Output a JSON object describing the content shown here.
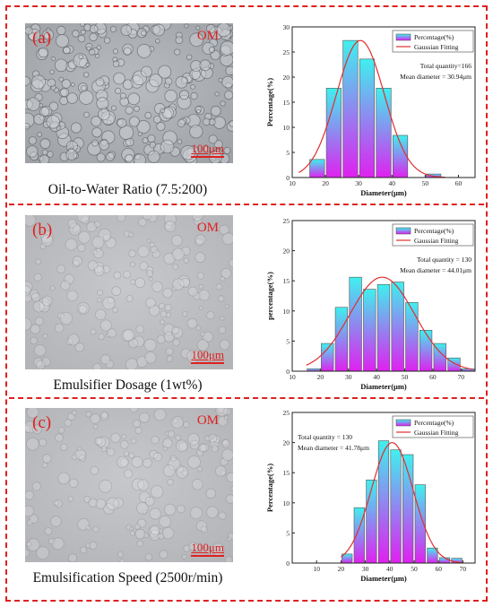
{
  "colors": {
    "frame": "#e02020",
    "fit": "#e03030",
    "bar_top": "#3ff0ef",
    "bar_bottom": "#e020f0"
  },
  "panels": [
    {
      "label": "(a)",
      "om": "OM",
      "scale": "100μm",
      "caption": "Oil-to-Water Ratio (7.5:200)",
      "texture": "dense",
      "chart_data": {
        "type": "bar",
        "xlabel": "Diameter(μm)",
        "ylabel": "Percentage(%)",
        "xlim": [
          10,
          65
        ],
        "ylim": [
          0,
          30
        ],
        "xticks": [
          10,
          20,
          30,
          40,
          50,
          60
        ],
        "yticks": [
          0,
          5,
          10,
          15,
          20,
          25,
          30
        ],
        "x": [
          17.5,
          22.5,
          27.5,
          32.5,
          37.5,
          42.5,
          52.5
        ],
        "values": [
          3.6,
          17.8,
          27.3,
          23.6,
          17.8,
          8.4,
          0.7
        ],
        "bin_width": 5,
        "fit": {
          "mean": 30.5,
          "sd": 7.2,
          "peak": 27.3,
          "range": [
            12,
            56
          ]
        },
        "legend": [
          "Percentage(%)",
          "Gaussian Fitting"
        ],
        "annotations": [
          "Total quantity=166",
          "Mean diameter = 30.94μm"
        ]
      }
    },
    {
      "label": "(b)",
      "om": "OM",
      "scale": "100μm",
      "caption": "Emulsifier Dosage (1wt%)",
      "texture": "sparse",
      "chart_data": {
        "type": "bar",
        "xlabel": "Diameter(μm)",
        "ylabel": "percentage(%)",
        "xlim": [
          10,
          75
        ],
        "ylim": [
          0,
          25
        ],
        "xticks": [
          10,
          20,
          30,
          40,
          50,
          60,
          70
        ],
        "yticks": [
          0,
          5,
          10,
          15,
          20,
          25
        ],
        "x": [
          17.5,
          22.5,
          27.5,
          32.5,
          37.5,
          42.5,
          47.5,
          52.5,
          57.5,
          62.5,
          67.5,
          72.5
        ],
        "values": [
          0.4,
          4.6,
          10.6,
          15.6,
          13.6,
          14.4,
          14.8,
          11.4,
          6.8,
          4.6,
          2.2,
          0.4
        ],
        "bin_width": 5,
        "fit": {
          "mean": 42,
          "sd": 11.5,
          "peak": 15.6,
          "range": [
            15,
            74
          ]
        },
        "legend": [
          "Percentage(%)",
          "Gaussian Fitting"
        ],
        "annotations": [
          "Total quantity = 130",
          "Mean diameter = 44.01μm"
        ]
      }
    },
    {
      "label": "(c)",
      "om": "OM",
      "scale": "100μm",
      "caption": "Emulsification Speed (2500r/min)",
      "texture": "sparse",
      "chart_data": {
        "type": "bar",
        "xlabel": "Diameter(μm)",
        "ylabel": "Percentage(%)",
        "xlim": [
          0,
          75
        ],
        "ylim": [
          0,
          25
        ],
        "xticks": [
          10,
          20,
          30,
          40,
          50,
          60,
          70
        ],
        "yticks": [
          0,
          5,
          10,
          15,
          20,
          25
        ],
        "x": [
          22.5,
          27.5,
          32.5,
          37.5,
          42.5,
          47.5,
          52.5,
          57.5,
          62.5,
          67.5
        ],
        "values": [
          1.5,
          9.2,
          13.8,
          20.3,
          18.8,
          18.0,
          13.0,
          2.5,
          0.9,
          0.8
        ],
        "bin_width": 5,
        "fit": {
          "mean": 41,
          "sd": 8.6,
          "peak": 20.0,
          "range": [
            20,
            70
          ]
        },
        "legend": [
          "Percentage(%)",
          "Gaussian Fitting"
        ],
        "annotations": [
          "Total quantity = 130",
          "Mean diameter = 41.78μm"
        ]
      }
    }
  ]
}
